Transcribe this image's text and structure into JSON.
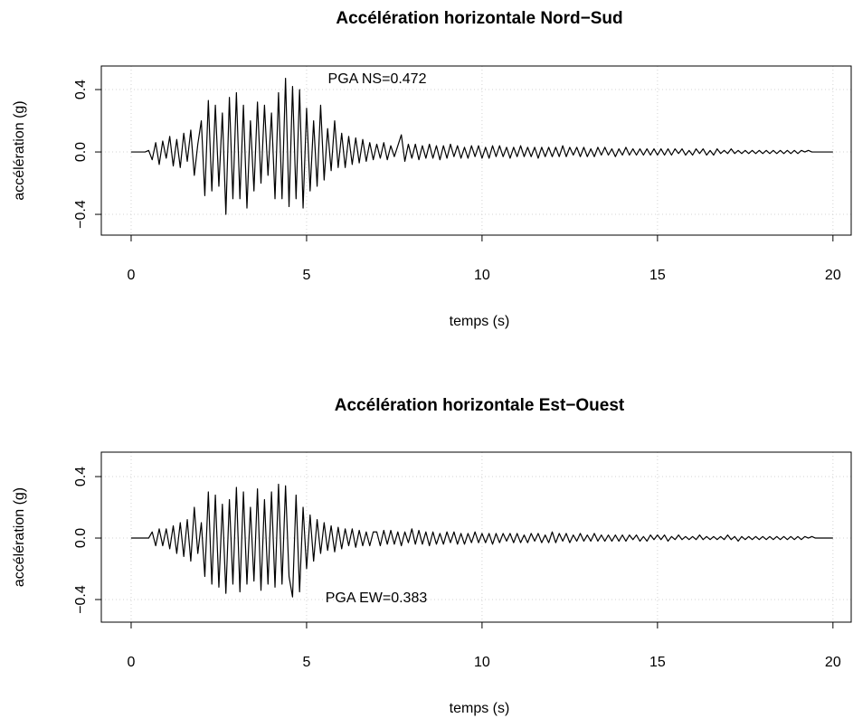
{
  "chart_data": [
    {
      "type": "line",
      "title": "Accélération horizontale Nord−Sud",
      "xlabel": "temps (s)",
      "ylabel": "accélération (g)",
      "annotation": "PGA NS=0.472",
      "color": "#000000",
      "grid": true,
      "xlim": [
        -0.85,
        20.52
      ],
      "ylim": [
        -0.533,
        0.551
      ],
      "xticks": [
        0,
        5,
        10,
        15,
        20
      ],
      "yticks": [
        {
          "value": -0.4,
          "label": "−0.4"
        },
        {
          "value": 0,
          "label": "0.0"
        },
        0.4
      ],
      "x": [
        0,
        0.1,
        0.2,
        0.3,
        0.4,
        0.5,
        0.6,
        0.7,
        0.8,
        0.9,
        1,
        1.1,
        1.2,
        1.3,
        1.4,
        1.5,
        1.6,
        1.7,
        1.8,
        1.9,
        2,
        2.1,
        2.2,
        2.3,
        2.4,
        2.5,
        2.6,
        2.7,
        2.8,
        2.9,
        3,
        3.1,
        3.2,
        3.3,
        3.4,
        3.5,
        3.6,
        3.7,
        3.8,
        3.9,
        4,
        4.1,
        4.2,
        4.3,
        4.4,
        4.5,
        4.6,
        4.7,
        4.8,
        4.9,
        5,
        5.1,
        5.2,
        5.3,
        5.4,
        5.5,
        5.6,
        5.7,
        5.8,
        5.9,
        6,
        6.1,
        6.2,
        6.3,
        6.4,
        6.5,
        6.6,
        6.7,
        6.8,
        6.9,
        7,
        7.1,
        7.2,
        7.3,
        7.4,
        7.5,
        7.6,
        7.7,
        7.8,
        7.9,
        8,
        8.1,
        8.2,
        8.3,
        8.4,
        8.5,
        8.6,
        8.7,
        8.8,
        8.9,
        9,
        9.1,
        9.2,
        9.3,
        9.4,
        9.5,
        9.6,
        9.7,
        9.8,
        9.9,
        10,
        10.1,
        10.2,
        10.3,
        10.4,
        10.5,
        10.6,
        10.7,
        10.8,
        10.9,
        11,
        11.1,
        11.2,
        11.3,
        11.4,
        11.5,
        11.6,
        11.7,
        11.8,
        11.9,
        12,
        12.1,
        12.2,
        12.3,
        12.4,
        12.5,
        12.6,
        12.7,
        12.8,
        12.9,
        13,
        13.1,
        13.2,
        13.3,
        13.4,
        13.5,
        13.6,
        13.7,
        13.8,
        13.9,
        14,
        14.1,
        14.2,
        14.3,
        14.4,
        14.5,
        14.6,
        14.7,
        14.8,
        14.9,
        15,
        15.1,
        15.2,
        15.3,
        15.4,
        15.5,
        15.6,
        15.7,
        15.8,
        15.9,
        16,
        16.1,
        16.2,
        16.3,
        16.4,
        16.5,
        16.6,
        16.7,
        16.8,
        16.9,
        17,
        17.1,
        17.2,
        17.3,
        17.4,
        17.5,
        17.6,
        17.7,
        17.8,
        17.9,
        18,
        18.1,
        18.2,
        18.3,
        18.4,
        18.5,
        18.6,
        18.7,
        18.8,
        18.9,
        19,
        19.1,
        19.2,
        19.3,
        19.4,
        19.5,
        19.6,
        19.7,
        19.8,
        19.9,
        20
      ],
      "values": [
        0,
        0,
        0,
        0,
        0,
        0.01,
        -0.05,
        0.06,
        -0.08,
        0.07,
        -0.04,
        0.1,
        -0.09,
        0.08,
        -0.1,
        0.12,
        -0.06,
        0.14,
        -0.15,
        0.05,
        0.2,
        -0.28,
        0.33,
        -0.25,
        0.3,
        -0.22,
        0.25,
        -0.4,
        0.35,
        -0.3,
        0.38,
        -0.3,
        0.3,
        -0.36,
        0.2,
        -0.25,
        0.32,
        -0.2,
        0.3,
        -0.15,
        0.25,
        -0.3,
        0.38,
        -0.3,
        0.472,
        -0.35,
        0.42,
        -0.3,
        0.4,
        -0.36,
        0.28,
        -0.25,
        0.2,
        -0.22,
        0.3,
        -0.18,
        0.15,
        -0.12,
        0.2,
        -0.1,
        0.12,
        -0.1,
        0.1,
        -0.08,
        0.09,
        -0.07,
        0.08,
        -0.06,
        0.06,
        -0.05,
        0.05,
        -0.04,
        0.06,
        -0.05,
        0.04,
        -0.03,
        0.04,
        0.11,
        -0.06,
        0.05,
        -0.04,
        0.05,
        -0.05,
        0.04,
        -0.04,
        0.05,
        -0.04,
        0.04,
        -0.05,
        0.04,
        -0.04,
        0.05,
        -0.03,
        0.04,
        -0.04,
        0.03,
        -0.04,
        0.04,
        -0.03,
        0.04,
        -0.04,
        0.03,
        -0.04,
        0.04,
        -0.03,
        0.04,
        -0.03,
        0.03,
        -0.04,
        0.03,
        -0.03,
        0.04,
        -0.03,
        0.03,
        -0.03,
        0.03,
        -0.04,
        0.03,
        -0.03,
        0.03,
        -0.03,
        0.03,
        -0.03,
        0.04,
        -0.03,
        0.03,
        -0.02,
        0.03,
        -0.03,
        0.03,
        -0.03,
        0.02,
        -0.03,
        0.03,
        -0.02,
        0.03,
        -0.02,
        0.02,
        -0.03,
        0.02,
        -0.02,
        0.03,
        -0.02,
        0.02,
        -0.02,
        0.02,
        -0.02,
        0.02,
        -0.02,
        0.02,
        -0.02,
        0.02,
        -0.02,
        0.02,
        -0.02,
        0.02,
        -0.01,
        0.02,
        -0.02,
        0.01,
        -0.02,
        0.02,
        -0.01,
        0.02,
        -0.02,
        0.01,
        -0.02,
        0.02,
        -0.01,
        0.01,
        -0.01,
        0.02,
        -0.01,
        0.01,
        -0.01,
        0.01,
        -0.01,
        0.01,
        -0.01,
        0.01,
        -0.01,
        0.01,
        -0.01,
        0.01,
        -0.01,
        0.01,
        -0.01,
        0.01,
        -0.01,
        0.01,
        -0.01,
        0.01,
        0,
        0.01,
        0,
        0,
        0,
        0,
        0,
        0,
        0
      ]
    },
    {
      "type": "line",
      "title": "Accélération horizontale Est−Ouest",
      "xlabel": "temps (s)",
      "ylabel": "accélération (g)",
      "annotation": "PGA EW=0.383",
      "color": "#000000",
      "grid": true,
      "xlim": [
        -0.85,
        20.52
      ],
      "ylim": [
        -0.547,
        0.559
      ],
      "xticks": [
        0,
        5,
        10,
        15,
        20
      ],
      "yticks": [
        {
          "value": -0.4,
          "label": "−0.4"
        },
        {
          "value": 0,
          "label": "0.0"
        },
        0.4
      ],
      "x": [
        0,
        0.1,
        0.2,
        0.3,
        0.4,
        0.5,
        0.6,
        0.7,
        0.8,
        0.9,
        1,
        1.1,
        1.2,
        1.3,
        1.4,
        1.5,
        1.6,
        1.7,
        1.8,
        1.9,
        2,
        2.1,
        2.2,
        2.3,
        2.4,
        2.5,
        2.6,
        2.7,
        2.8,
        2.9,
        3,
        3.1,
        3.2,
        3.3,
        3.4,
        3.5,
        3.6,
        3.7,
        3.8,
        3.9,
        4,
        4.1,
        4.2,
        4.3,
        4.4,
        4.5,
        4.6,
        4.7,
        4.8,
        4.9,
        5,
        5.1,
        5.2,
        5.3,
        5.4,
        5.5,
        5.6,
        5.7,
        5.8,
        5.9,
        6,
        6.1,
        6.2,
        6.3,
        6.4,
        6.5,
        6.6,
        6.7,
        6.8,
        6.9,
        7,
        7.1,
        7.2,
        7.3,
        7.4,
        7.5,
        7.6,
        7.7,
        7.8,
        7.9,
        8,
        8.1,
        8.2,
        8.3,
        8.4,
        8.5,
        8.6,
        8.7,
        8.8,
        8.9,
        9,
        9.1,
        9.2,
        9.3,
        9.4,
        9.5,
        9.6,
        9.7,
        9.8,
        9.9,
        10,
        10.1,
        10.2,
        10.3,
        10.4,
        10.5,
        10.6,
        10.7,
        10.8,
        10.9,
        11,
        11.1,
        11.2,
        11.3,
        11.4,
        11.5,
        11.6,
        11.7,
        11.8,
        11.9,
        12,
        12.1,
        12.2,
        12.3,
        12.4,
        12.5,
        12.6,
        12.7,
        12.8,
        12.9,
        13,
        13.1,
        13.2,
        13.3,
        13.4,
        13.5,
        13.6,
        13.7,
        13.8,
        13.9,
        14,
        14.1,
        14.2,
        14.3,
        14.4,
        14.5,
        14.6,
        14.7,
        14.8,
        14.9,
        15,
        15.1,
        15.2,
        15.3,
        15.4,
        15.5,
        15.6,
        15.7,
        15.8,
        15.9,
        16,
        16.1,
        16.2,
        16.3,
        16.4,
        16.5,
        16.6,
        16.7,
        16.8,
        16.9,
        17,
        17.1,
        17.2,
        17.3,
        17.4,
        17.5,
        17.6,
        17.7,
        17.8,
        17.9,
        18,
        18.1,
        18.2,
        18.3,
        18.4,
        18.5,
        18.6,
        18.7,
        18.8,
        18.9,
        19,
        19.1,
        19.2,
        19.3,
        19.4,
        19.5,
        19.6,
        19.7,
        19.8,
        19.9,
        20
      ],
      "values": [
        0,
        0,
        0,
        0,
        0,
        0,
        0.04,
        -0.05,
        0.06,
        -0.05,
        0.06,
        -0.07,
        0.08,
        -0.1,
        0.1,
        -0.12,
        0.12,
        -0.15,
        0.2,
        -0.1,
        0.1,
        -0.25,
        0.3,
        -0.3,
        0.28,
        -0.32,
        0.22,
        -0.36,
        0.25,
        -0.3,
        0.33,
        -0.35,
        0.3,
        -0.3,
        0.2,
        -0.28,
        0.32,
        -0.34,
        0.25,
        -0.3,
        0.3,
        -0.32,
        0.35,
        -0.3,
        0.34,
        -0.25,
        -0.383,
        0.28,
        -0.35,
        0.2,
        -0.2,
        0.15,
        -0.15,
        0.12,
        -0.1,
        0.1,
        -0.08,
        0.08,
        -0.09,
        0.07,
        -0.07,
        0.06,
        -0.05,
        0.06,
        -0.06,
        0.05,
        -0.05,
        0.04,
        -0.05,
        0.04,
        0.04,
        -0.05,
        0.05,
        -0.04,
        0.05,
        -0.04,
        0.04,
        -0.05,
        0.04,
        -0.03,
        0.06,
        -0.04,
        0.05,
        -0.04,
        0.04,
        -0.05,
        0.04,
        -0.04,
        0.03,
        -0.04,
        0.04,
        -0.03,
        0.04,
        -0.04,
        0.03,
        -0.04,
        0.03,
        -0.03,
        0.04,
        -0.03,
        0.03,
        -0.03,
        0.03,
        -0.04,
        0.03,
        -0.03,
        0.03,
        -0.02,
        0.03,
        -0.03,
        0.03,
        -0.03,
        0.02,
        -0.03,
        0.03,
        -0.02,
        0.03,
        -0.03,
        0.02,
        -0.03,
        0.04,
        -0.03,
        0.03,
        -0.02,
        0.03,
        -0.03,
        0.02,
        -0.02,
        0.03,
        -0.02,
        0.02,
        -0.02,
        0.03,
        -0.02,
        0.02,
        -0.02,
        0.02,
        -0.02,
        0.02,
        -0.02,
        0.02,
        -0.02,
        0.02,
        -0.01,
        0.02,
        -0.02,
        0.01,
        -0.02,
        0.02,
        -0.01,
        0.02,
        -0.01,
        0.02,
        -0.02,
        0.01,
        -0.01,
        0.02,
        -0.01,
        0.01,
        -0.01,
        0.01,
        -0.01,
        0.02,
        -0.01,
        0.01,
        -0.01,
        0.01,
        -0.01,
        0.01,
        -0.01,
        0.02,
        -0.01,
        0.01,
        -0.02,
        0.01,
        -0.01,
        0.01,
        -0.01,
        0.01,
        -0.01,
        0.01,
        -0.01,
        0.01,
        -0.01,
        0.01,
        -0.01,
        0.01,
        -0.01,
        0.01,
        -0.01,
        0.01,
        -0.01,
        0.01,
        0,
        0.01,
        0,
        0,
        0,
        0,
        0,
        0
      ]
    }
  ]
}
